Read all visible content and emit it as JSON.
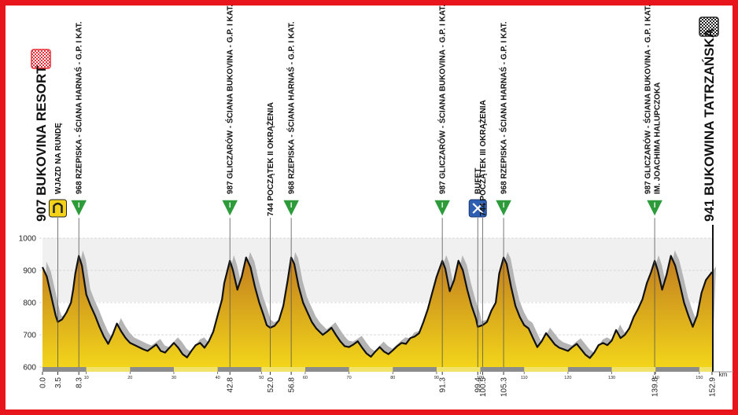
{
  "colors": {
    "frame": "#e8151c",
    "fill_top": "#c17c1f",
    "fill_bottom": "#f2d51a",
    "shadow": "#b4b4b4",
    "band": "#f0f0f0",
    "outline": "#111111",
    "km_bar": "#f0e26a"
  },
  "chart_data": {
    "type": "area",
    "xlabel": "km",
    "ylabel": "",
    "xlim": [
      0,
      152.9
    ],
    "ylim": [
      600,
      1000
    ],
    "y_ticks": [
      600,
      700,
      800,
      900,
      1000
    ],
    "x_minor_ticks": [
      10,
      20,
      30,
      40,
      50,
      60,
      70,
      80,
      90,
      100,
      110,
      120,
      130,
      140,
      150
    ],
    "x_points": [
      {
        "label": "0.0",
        "km": 0.0
      },
      {
        "label": "3.5",
        "km": 3.5
      },
      {
        "label": "8.3",
        "km": 8.3
      },
      {
        "label": "42.8",
        "km": 42.8
      },
      {
        "label": "52.0",
        "km": 52.0
      },
      {
        "label": "56.8",
        "km": 56.8
      },
      {
        "label": "91.3",
        "km": 91.3
      },
      {
        "label": "99.4",
        "km": 99.4
      },
      {
        "label": "100.5",
        "km": 100.5
      },
      {
        "label": "105.3",
        "km": 105.3
      },
      {
        "label": "139.8",
        "km": 139.8
      },
      {
        "label": "152.9",
        "km": 152.9
      }
    ],
    "profile": [
      [
        0,
        910
      ],
      [
        1,
        880
      ],
      [
        2,
        820
      ],
      [
        3,
        760
      ],
      [
        3.5,
        740
      ],
      [
        4.5,
        748
      ],
      [
        5.5,
        770
      ],
      [
        6.5,
        800
      ],
      [
        7,
        840
      ],
      [
        7.5,
        890
      ],
      [
        8.3,
        945
      ],
      [
        9,
        915
      ],
      [
        10,
        825
      ],
      [
        11,
        790
      ],
      [
        12,
        760
      ],
      [
        13,
        725
      ],
      [
        14,
        695
      ],
      [
        15,
        672
      ],
      [
        16,
        700
      ],
      [
        17,
        735
      ],
      [
        18,
        710
      ],
      [
        19,
        690
      ],
      [
        20,
        675
      ],
      [
        22,
        662
      ],
      [
        23,
        655
      ],
      [
        24,
        650
      ],
      [
        25,
        660
      ],
      [
        26,
        670
      ],
      [
        27,
        650
      ],
      [
        28,
        645
      ],
      [
        29,
        660
      ],
      [
        30,
        675
      ],
      [
        31,
        660
      ],
      [
        32,
        640
      ],
      [
        33,
        630
      ],
      [
        34,
        650
      ],
      [
        35,
        668
      ],
      [
        36,
        675
      ],
      [
        37,
        660
      ],
      [
        38,
        680
      ],
      [
        39,
        710
      ],
      [
        40,
        760
      ],
      [
        41,
        810
      ],
      [
        41.5,
        860
      ],
      [
        42.8,
        930
      ],
      [
        43.5,
        900
      ],
      [
        44.5,
        840
      ],
      [
        45.5,
        880
      ],
      [
        46.5,
        940
      ],
      [
        47.5,
        910
      ],
      [
        48.5,
        850
      ],
      [
        49.5,
        800
      ],
      [
        50.5,
        760
      ],
      [
        51.2,
        730
      ],
      [
        52,
        722
      ],
      [
        53,
        728
      ],
      [
        54,
        745
      ],
      [
        55,
        790
      ],
      [
        56,
        870
      ],
      [
        56.8,
        940
      ],
      [
        57.5,
        920
      ],
      [
        58.5,
        850
      ],
      [
        59.5,
        800
      ],
      [
        60.5,
        770
      ],
      [
        61.5,
        740
      ],
      [
        62.5,
        720
      ],
      [
        64,
        700
      ],
      [
        65,
        710
      ],
      [
        66,
        722
      ],
      [
        67,
        700
      ],
      [
        68,
        680
      ],
      [
        69,
        665
      ],
      [
        70,
        662
      ],
      [
        71,
        670
      ],
      [
        72,
        680
      ],
      [
        73,
        660
      ],
      [
        74,
        642
      ],
      [
        75,
        632
      ],
      [
        76,
        648
      ],
      [
        77,
        662
      ],
      [
        78,
        648
      ],
      [
        79,
        640
      ],
      [
        80,
        652
      ],
      [
        81,
        665
      ],
      [
        82,
        675
      ],
      [
        83,
        672
      ],
      [
        84,
        690
      ],
      [
        85,
        695
      ],
      [
        86,
        705
      ],
      [
        87,
        740
      ],
      [
        88,
        780
      ],
      [
        89,
        830
      ],
      [
        90,
        880
      ],
      [
        91.3,
        930
      ],
      [
        92,
        905
      ],
      [
        93,
        835
      ],
      [
        94,
        870
      ],
      [
        95,
        930
      ],
      [
        96,
        900
      ],
      [
        97,
        840
      ],
      [
        98,
        790
      ],
      [
        99,
        750
      ],
      [
        99.4,
        725
      ],
      [
        100.5,
        730
      ],
      [
        101.5,
        740
      ],
      [
        102.5,
        775
      ],
      [
        103.5,
        800
      ],
      [
        104.3,
        890
      ],
      [
        105.3,
        940
      ],
      [
        106,
        920
      ],
      [
        107,
        850
      ],
      [
        108,
        790
      ],
      [
        109,
        755
      ],
      [
        110,
        730
      ],
      [
        111,
        720
      ],
      [
        112,
        690
      ],
      [
        113,
        662
      ],
      [
        114,
        680
      ],
      [
        115,
        705
      ],
      [
        116,
        688
      ],
      [
        117,
        670
      ],
      [
        118,
        660
      ],
      [
        119,
        655
      ],
      [
        120,
        650
      ],
      [
        121,
        662
      ],
      [
        122,
        672
      ],
      [
        123,
        655
      ],
      [
        124,
        638
      ],
      [
        125,
        628
      ],
      [
        126,
        645
      ],
      [
        127,
        668
      ],
      [
        128,
        675
      ],
      [
        129,
        668
      ],
      [
        130,
        682
      ],
      [
        131,
        715
      ],
      [
        132,
        690
      ],
      [
        133,
        700
      ],
      [
        134,
        720
      ],
      [
        135,
        755
      ],
      [
        136,
        780
      ],
      [
        137,
        810
      ],
      [
        138,
        860
      ],
      [
        139,
        895
      ],
      [
        139.8,
        930
      ],
      [
        140.5,
        900
      ],
      [
        141.5,
        840
      ],
      [
        142.5,
        885
      ],
      [
        143.5,
        945
      ],
      [
        144.5,
        915
      ],
      [
        145.5,
        860
      ],
      [
        146.5,
        800
      ],
      [
        147.5,
        760
      ],
      [
        148.5,
        725
      ],
      [
        149.5,
        760
      ],
      [
        150.5,
        830
      ],
      [
        151.5,
        870
      ],
      [
        152.9,
        895
      ]
    ],
    "annotations": [
      {
        "km": 0.0,
        "text": "907 BUKOVINA RESORT",
        "icon": "start-flag-icon",
        "kind": "start"
      },
      {
        "km": 3.5,
        "text": "WJAZD NA RUNDĘ",
        "icon": "horseshoe-icon",
        "kind": "point"
      },
      {
        "km": 8.3,
        "text": "968 RZEPISKA - ŚCIANA HARNAŚ - G.P. I KAT.",
        "icon": "climb-icon",
        "kind": "climb"
      },
      {
        "km": 42.8,
        "text": "987 GLICZARÓW - ŚCIANA BUKOVINA - G.P. I KAT.",
        "icon": "climb-icon",
        "kind": "climb"
      },
      {
        "km": 52.0,
        "text": "744 POCZĄTEK II OKRĄŻENIA",
        "icon": "",
        "kind": "point"
      },
      {
        "km": 56.8,
        "text": "968 RZEPISKA - ŚCIANA HARNAŚ - G.P. I KAT.",
        "icon": "climb-icon",
        "kind": "climb"
      },
      {
        "km": 91.3,
        "text": "987 GLICZARÓW - ŚCIANA BUKOVINA - G.P. I KAT.",
        "icon": "climb-icon",
        "kind": "climb"
      },
      {
        "km": 99.4,
        "text": "BUFET",
        "icon": "feed-zone-icon",
        "kind": "point"
      },
      {
        "km": 100.5,
        "text": "744 POCZĄTEK III OKRĄŻENIA",
        "icon": "",
        "kind": "point"
      },
      {
        "km": 105.3,
        "text": "968 RZEPISKA - ŚCIANA HARNAŚ - G.P. I KAT.",
        "icon": "climb-icon",
        "kind": "climb"
      },
      {
        "km": 139.8,
        "text": "987 GLICZARÓW - ŚCIANA BUKOVINA - G.P. I KAT.",
        "text2": "IM. JOACHIMA HALUPCZOKA",
        "icon": "climb-icon",
        "kind": "climb"
      },
      {
        "km": 152.9,
        "text": "941 BUKOWINA TATRZAŃSKA",
        "icon": "finish-flag-icon",
        "kind": "finish"
      }
    ],
    "climb_icon_label": "I"
  }
}
